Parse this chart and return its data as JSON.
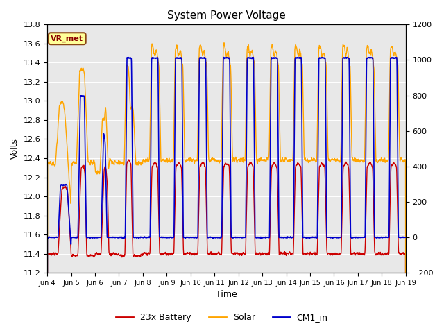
{
  "title": "System Power Voltage",
  "xlabel": "Time",
  "ylabel": "Volts",
  "ylim_left": [
    11.2,
    13.8
  ],
  "ylim_right": [
    -200,
    1200
  ],
  "yticks_left": [
    11.2,
    11.4,
    11.6,
    11.8,
    12.0,
    12.2,
    12.4,
    12.6,
    12.8,
    13.0,
    13.2,
    13.4,
    13.6,
    13.8
  ],
  "yticks_right": [
    -200,
    0,
    200,
    400,
    600,
    800,
    1000,
    1200
  ],
  "background_color": "#e8e8e8",
  "annotation_text": "VR_met",
  "series": [
    {
      "name": "23x Battery",
      "color": "#cc0000",
      "linewidth": 1.0
    },
    {
      "name": "Solar",
      "color": "#ffa500",
      "linewidth": 1.0
    },
    {
      "name": "CM1_in",
      "color": "#0000cc",
      "linewidth": 1.2
    }
  ],
  "xtick_labels": [
    "Jun 4",
    "Jun 5",
    "Jun 6",
    "Jun 7",
    "Jun 8",
    "Jun 9",
    "Jun 10",
    "Jun 11",
    "Jun 12",
    "Jun 13",
    "Jun 14",
    "Jun 15",
    "Jun 16",
    "Jun 17",
    "Jun 18",
    "Jun 19"
  ],
  "xtick_positions": [
    0,
    1,
    2,
    3,
    4,
    5,
    6,
    7,
    8,
    9,
    10,
    11,
    12,
    13,
    14,
    15
  ]
}
